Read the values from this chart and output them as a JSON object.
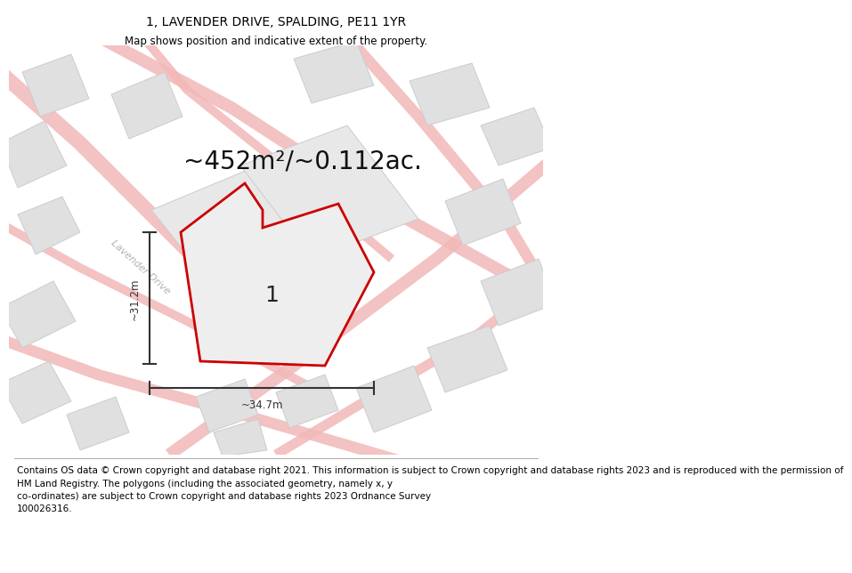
{
  "title_line1": "1, LAVENDER DRIVE, SPALDING, PE11 1YR",
  "title_line2": "Map shows position and indicative extent of the property.",
  "area_text": "~452m²/~0.112ac.",
  "width_label": "~34.7m",
  "height_label": "~31.2m",
  "plot_number": "1",
  "footer_text": "Contains OS data © Crown copyright and database right 2021. This information is subject to Crown copyright and database rights 2023 and is reproduced with the permission of\nHM Land Registry. The polygons (including the associated geometry, namely x, y\nco-ordinates) are subject to Crown copyright and database rights 2023 Ordnance Survey\n100026316.",
  "bg_color": "#f5f5f5",
  "plot_fill": "#e8e8e8",
  "plot_edge": "#cc0000",
  "build_fill": "#e0e0e0",
  "build_edge": "#cccccc",
  "road_color": "#f5c0c0",
  "street_label": "Lavender Drive",
  "dim_color": "#333333",
  "title_fontsize": 10,
  "subtitle_fontsize": 8.5,
  "area_fontsize": 20,
  "footer_fontsize": 7.5,
  "plot_label_fontsize": 18
}
